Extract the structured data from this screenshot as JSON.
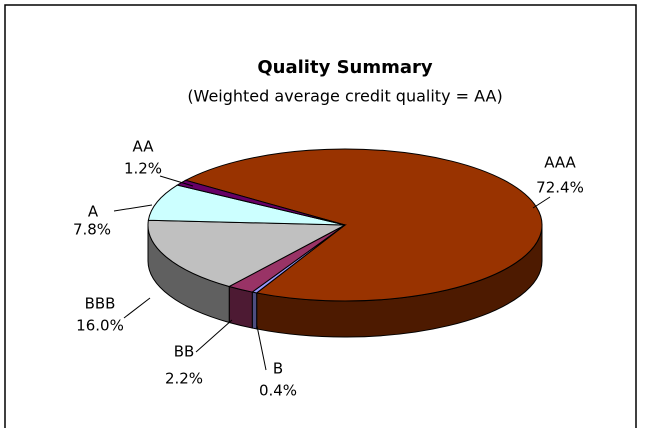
{
  "chart_data": {
    "type": "pie",
    "title": "Quality Summary",
    "subtitle": "(Weighted average credit quality = AA)",
    "categories": [
      "AAA",
      "B",
      "BB",
      "BBB",
      "A",
      "AA"
    ],
    "values": [
      72.4,
      0.4,
      2.2,
      16.0,
      7.8,
      1.2
    ],
    "value_labels": [
      "72.4%",
      "0.4%",
      "2.2%",
      "16.0%",
      "7.8%",
      "1.2%"
    ],
    "colors": [
      "#993300",
      "#9999ff",
      "#993366",
      "#c0c0c0",
      "#ccffff",
      "#660066"
    ],
    "three_d": true
  }
}
